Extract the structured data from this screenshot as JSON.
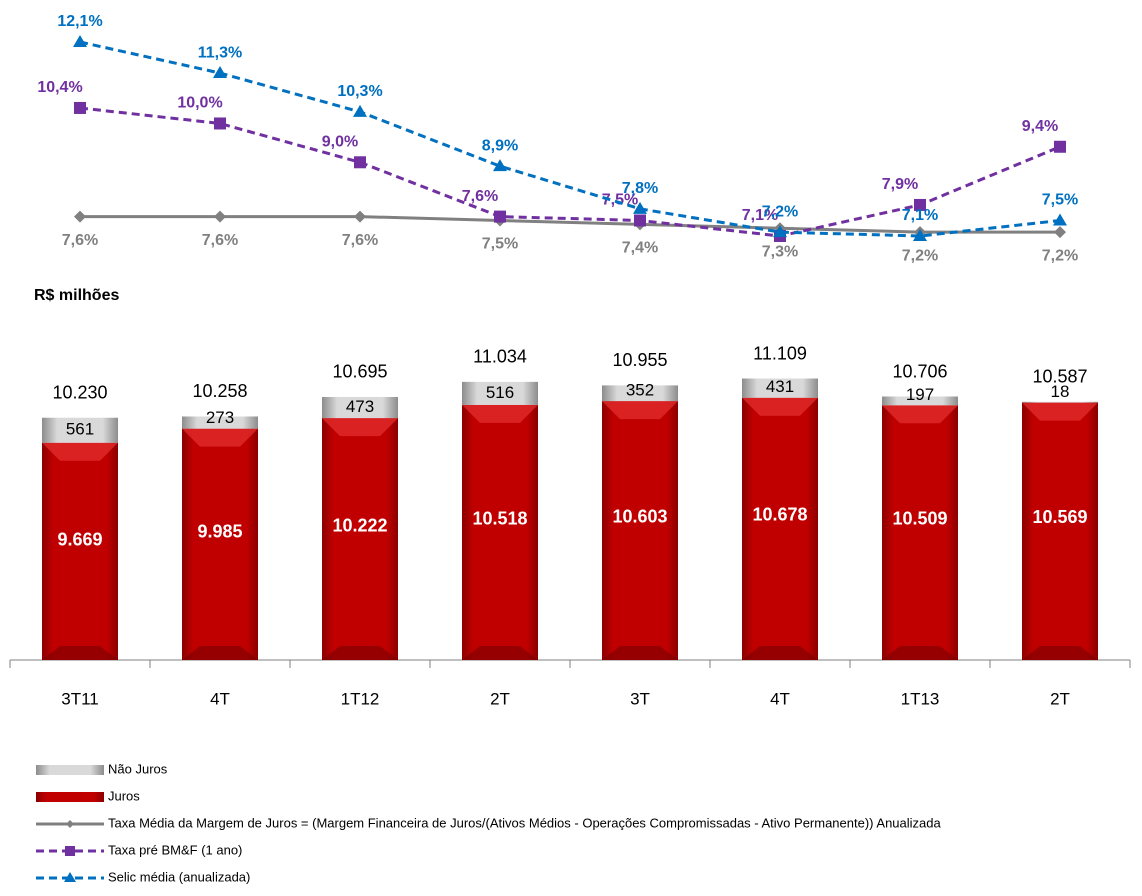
{
  "chart_data": {
    "type": "bar",
    "y_label": "R$ milhões",
    "categories": [
      "3T11",
      "4T",
      "1T12",
      "2T",
      "3T",
      "4T",
      "1T13",
      "2T"
    ],
    "ylim": [
      4800,
      11300
    ],
    "y2lim": [
      6.6,
      12.6
    ],
    "series": [
      {
        "name": "Não Juros",
        "type": "bar",
        "color": "#bdbdbd",
        "values": [
          561,
          273,
          473,
          516,
          352,
          431,
          197,
          18
        ]
      },
      {
        "name": "Juros",
        "type": "bar",
        "color": "#c00000",
        "values": [
          9669,
          9985,
          10222,
          10518,
          10603,
          10678,
          10509,
          10569
        ],
        "value_labels": [
          "9.669",
          "9.985",
          "10.222",
          "10.518",
          "10.603",
          "10.678",
          "10.509",
          "10.569"
        ]
      },
      {
        "name": "Taxa Média da Margem de Juros = (Margem Financeira de Juros/(Ativos Médios - Operações Compromissadas - Ativo Permanente)) Anualizada",
        "type": "line",
        "axis": "y2",
        "color": "#808080",
        "marker": "diamond",
        "dash": false,
        "values": [
          7.6,
          7.6,
          7.6,
          7.5,
          7.4,
          7.3,
          7.2,
          7.2
        ],
        "value_labels": [
          "7,6%",
          "7,6%",
          "7,6%",
          "7,5%",
          "7,4%",
          "7,3%",
          "7,2%",
          "7,2%"
        ]
      },
      {
        "name": "Taxa pré BM&F (1 ano)",
        "type": "line",
        "axis": "y2",
        "color": "#7030a0",
        "marker": "square",
        "dash": true,
        "values": [
          10.4,
          10.0,
          9.0,
          7.6,
          7.5,
          7.1,
          7.9,
          9.4
        ],
        "value_labels": [
          "10,4%",
          "10,0%",
          "9,0%",
          "7,6%",
          "7,5%",
          "7,1%",
          "7,9%",
          "9,4%"
        ]
      },
      {
        "name": "Selic média (anualizada)",
        "type": "line",
        "axis": "y2",
        "color": "#0070c0",
        "marker": "triangle",
        "dash": true,
        "values": [
          12.1,
          11.3,
          10.3,
          8.9,
          7.8,
          7.2,
          7.1,
          7.5
        ],
        "value_labels": [
          "12,1%",
          "11,3%",
          "10,3%",
          "8,9%",
          "7,8%",
          "7,2%",
          "7,1%",
          "7,5%"
        ]
      }
    ],
    "totals": {
      "values": [
        10230,
        10258,
        10695,
        11034,
        10955,
        11109,
        10706,
        10587
      ],
      "value_labels": [
        "10.230",
        "10.258",
        "10.695",
        "11.034",
        "10.955",
        "11.109",
        "10.706",
        "10.587"
      ]
    }
  }
}
